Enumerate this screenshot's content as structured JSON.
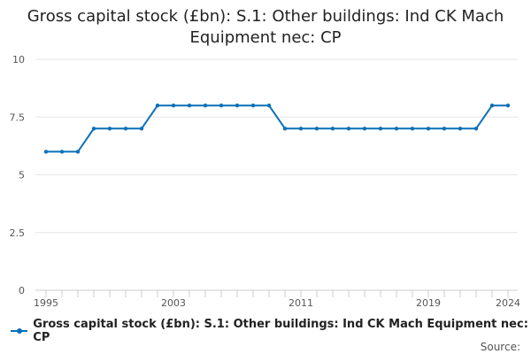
{
  "title_lines": [
    "Gross capital stock (£bn): S.1: Other buildings: Ind CK Mach",
    "Equipment nec: CP"
  ],
  "legend_label": "Gross capital stock (£bn): S.1: Other buildings: Ind CK Mach Equipment nec: CP",
  "source_label": "Source:",
  "colors": {
    "series": "#0a70b8",
    "grid": "#e6e6e6",
    "axis": "#cccccc",
    "text": "#555555"
  },
  "chart_data": {
    "type": "line",
    "title": "Gross capital stock (£bn): S.1: Other buildings: Ind CK Mach Equipment nec: CP",
    "xlabel": "",
    "ylabel": "",
    "ylim": [
      0,
      10
    ],
    "xlim": [
      1995,
      2024
    ],
    "yticks": [
      0,
      2.5,
      5,
      7.5,
      10
    ],
    "ytick_labels": [
      "0",
      "2.5",
      "5",
      "7.5",
      "10"
    ],
    "xtick_labels": [
      "1995",
      "2003",
      "2011",
      "2019",
      "2024"
    ],
    "grid": true,
    "legend_position": "bottom",
    "series": [
      {
        "name": "Gross capital stock (£bn): S.1: Other buildings: Ind CK Mach Equipment nec: CP",
        "x": [
          1995,
          1996,
          1997,
          1998,
          1999,
          2000,
          2001,
          2002,
          2003,
          2004,
          2005,
          2006,
          2007,
          2008,
          2009,
          2010,
          2011,
          2012,
          2013,
          2014,
          2015,
          2016,
          2017,
          2018,
          2019,
          2020,
          2021,
          2022,
          2023,
          2024
        ],
        "values": [
          6,
          6,
          6,
          7,
          7,
          7,
          7,
          8,
          8,
          8,
          8,
          8,
          8,
          8,
          8,
          7,
          7,
          7,
          7,
          7,
          7,
          7,
          7,
          7,
          7,
          7,
          7,
          7,
          8,
          8
        ]
      }
    ]
  }
}
